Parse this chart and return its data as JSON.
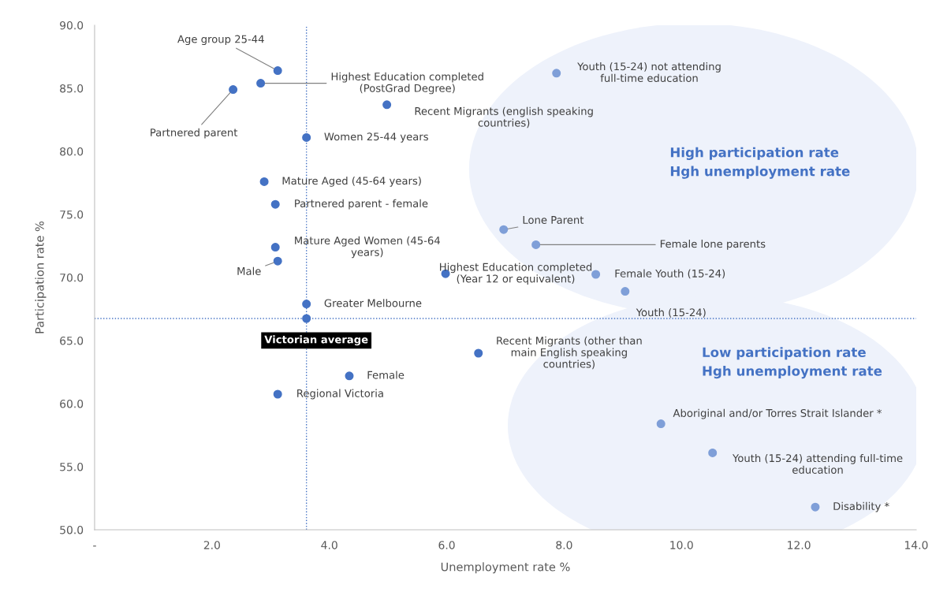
{
  "chart_data": {
    "type": "scatter",
    "xlabel": "Unemployment rate %",
    "ylabel": "Participation rate %",
    "marker": "circle",
    "grid": false,
    "legend": false,
    "xlim": [
      0,
      14
    ],
    "ylim": [
      50,
      90
    ],
    "xticks": [
      {
        "value": 0,
        "label": "-"
      },
      {
        "value": 2,
        "label": "2.0"
      },
      {
        "value": 4,
        "label": "4.0"
      },
      {
        "value": 6,
        "label": "6.0"
      },
      {
        "value": 8,
        "label": "8.0"
      },
      {
        "value": 10,
        "label": "10.0"
      },
      {
        "value": 12,
        "label": "12.0"
      },
      {
        "value": 14,
        "label": "14.0"
      }
    ],
    "yticks": [
      {
        "value": 50,
        "label": "50.0"
      },
      {
        "value": 55,
        "label": "55.0"
      },
      {
        "value": 60,
        "label": "60.0"
      },
      {
        "value": 65,
        "label": "65.0"
      },
      {
        "value": 70,
        "label": "70.0"
      },
      {
        "value": 75,
        "label": "75.0"
      },
      {
        "value": 80,
        "label": "80.0"
      },
      {
        "value": 85,
        "label": "85.0"
      },
      {
        "value": 90,
        "label": "90.0"
      }
    ],
    "series": [
      {
        "color": "#4472c4",
        "x": [
          3.12,
          2.83,
          2.36,
          4.98,
          3.61,
          2.89,
          3.08,
          3.08,
          3.12,
          5.98,
          3.61,
          3.61,
          4.34,
          3.12,
          6.54
        ],
        "values": [
          86.4,
          85.4,
          84.9,
          83.7,
          81.1,
          77.6,
          75.8,
          72.4,
          71.3,
          70.3,
          67.9,
          66.75,
          62.2,
          60.75,
          64.0
        ]
      },
      {
        "color": "#7f9fd8",
        "x": [
          7.87,
          6.97,
          7.52,
          8.54,
          9.04,
          9.65,
          10.53,
          12.28
        ],
        "values": [
          86.2,
          73.8,
          72.6,
          70.25,
          68.9,
          58.4,
          56.1,
          51.8
        ]
      }
    ],
    "ref_lines": [
      {
        "axis": "x",
        "value": 3.61,
        "color": "#4472c4",
        "line_style": "dotted"
      },
      {
        "axis": "y",
        "value": 66.75,
        "color": "#4472c4",
        "line_style": "dotted"
      }
    ],
    "annotations": [
      {
        "text": "Age group 25-44",
        "x": 3.12,
        "y": 86.4
      },
      {
        "text": "Highest Education completed\n(PostGrad Degree)",
        "x": 2.83,
        "y": 85.4
      },
      {
        "text": "Partnered parent",
        "x": 2.36,
        "y": 84.9
      },
      {
        "text": "Recent Migrants (english speaking\ncountries)",
        "x": 4.98,
        "y": 83.7
      },
      {
        "text": "Women 25-44 years",
        "x": 3.61,
        "y": 81.1
      },
      {
        "text": "Mature Aged (45-64 years)",
        "x": 2.89,
        "y": 77.6
      },
      {
        "text": "Partnered parent - female",
        "x": 3.08,
        "y": 75.8
      },
      {
        "text": "Mature Aged Women (45-64\nyears)",
        "x": 3.08,
        "y": 72.4
      },
      {
        "text": "Male",
        "x": 3.12,
        "y": 71.3
      },
      {
        "text": "Highest Education completed\n(Year 12 or equivalent)",
        "x": 5.98,
        "y": 70.3
      },
      {
        "text": "Greater Melbourne",
        "x": 3.61,
        "y": 67.9
      },
      {
        "text": "Victorian average",
        "x": 3.61,
        "y": 66.75
      },
      {
        "text": "Female",
        "x": 4.34,
        "y": 62.2
      },
      {
        "text": "Regional Victoria",
        "x": 3.12,
        "y": 60.75
      },
      {
        "text": "Youth (15-24) not attending\nfull-time education",
        "x": 7.87,
        "y": 86.2
      },
      {
        "text": "Lone Parent",
        "x": 6.97,
        "y": 73.8
      },
      {
        "text": "Female lone parents",
        "x": 7.52,
        "y": 72.6
      },
      {
        "text": "Female Youth (15-24)",
        "x": 8.54,
        "y": 70.25
      },
      {
        "text": "Youth (15-24)",
        "x": 9.04,
        "y": 68.9
      },
      {
        "text": "Recent Migrants (other than\nmain English speaking\ncountries)",
        "x": 6.54,
        "y": 64.0
      },
      {
        "text": "Aboriginal and/or Torres Strait Islander *",
        "x": 9.65,
        "y": 58.4
      },
      {
        "text": "Youth (15-24) attending full-time\neducation",
        "x": 10.53,
        "y": 56.1
      },
      {
        "text": "Disability *",
        "x": 12.28,
        "y": 51.8
      },
      "High participation rate\nHgh unemployment rate",
      "Low participation rate\nHgh unemployment rate"
    ]
  }
}
